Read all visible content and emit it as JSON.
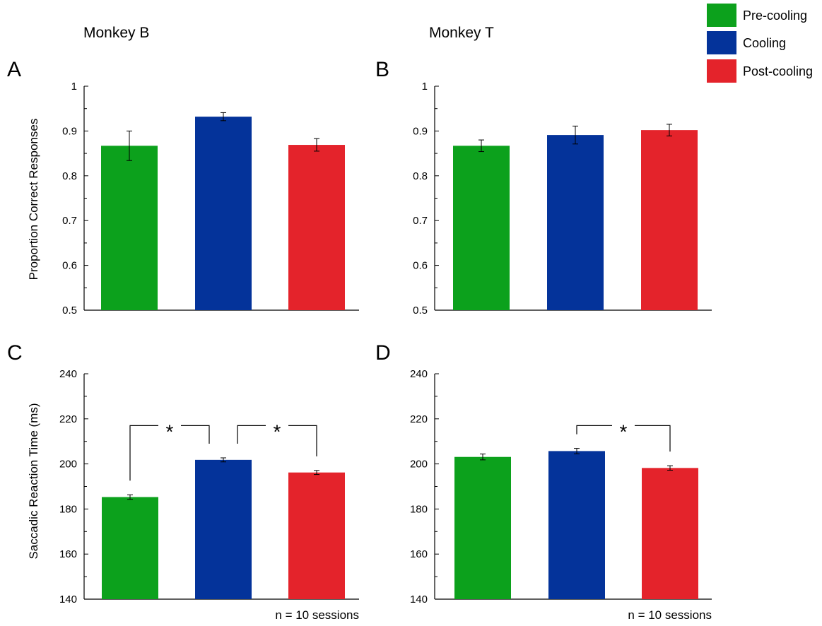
{
  "figure": {
    "monkey_labels": [
      "Monkey B",
      "Monkey T"
    ],
    "legend": [
      {
        "label": "Pre-cooling",
        "color": "#0ca11c"
      },
      {
        "label": "Cooling",
        "color": "#04339a"
      },
      {
        "label": "Post-cooling",
        "color": "#e4232b"
      }
    ],
    "note": "n = 10 sessions"
  },
  "chart_data": [
    {
      "type": "bar",
      "panel": "A",
      "ylabel": "Proportion Correct Responses",
      "ylim": [
        0.5,
        1
      ],
      "yticks": [
        0.5,
        0.6,
        0.7,
        0.8,
        0.9,
        1
      ],
      "ytick_labels": [
        "0.5",
        "0.6",
        "0.7",
        "0.8",
        "0.9",
        "1"
      ],
      "categories": [
        "Pre-cooling",
        "Cooling",
        "Post-cooling"
      ],
      "values": [
        0.867,
        0.932,
        0.869
      ],
      "errors": [
        0.033,
        0.009,
        0.014
      ],
      "significance": []
    },
    {
      "type": "bar",
      "panel": "B",
      "ylabel": "",
      "ylim": [
        0.5,
        1
      ],
      "yticks": [
        0.5,
        0.6,
        0.7,
        0.8,
        0.9,
        1
      ],
      "ytick_labels": [
        "0.5",
        "0.6",
        "0.7",
        "0.8",
        "0.9",
        "1"
      ],
      "categories": [
        "Pre-cooling",
        "Cooling",
        "Post-cooling"
      ],
      "values": [
        0.867,
        0.891,
        0.902
      ],
      "errors": [
        0.013,
        0.02,
        0.013
      ],
      "significance": []
    },
    {
      "type": "bar",
      "panel": "C",
      "ylabel": "Saccadic Reaction Time (ms)",
      "ylim": [
        140,
        240
      ],
      "yticks": [
        140,
        160,
        180,
        200,
        220,
        240
      ],
      "ytick_labels": [
        "140",
        "160",
        "180",
        "200",
        "220",
        "240"
      ],
      "categories": [
        "Pre-cooling",
        "Cooling",
        "Post-cooling"
      ],
      "values": [
        185.3,
        201.8,
        196.2
      ],
      "errors": [
        1.0,
        0.9,
        0.9
      ],
      "significance": [
        {
          "from": 0,
          "to": 1,
          "label": "*"
        },
        {
          "from": 1,
          "to": 2,
          "label": "*"
        }
      ]
    },
    {
      "type": "bar",
      "panel": "D",
      "ylabel": "",
      "ylim": [
        140,
        240
      ],
      "yticks": [
        140,
        160,
        180,
        200,
        220,
        240
      ],
      "ytick_labels": [
        "140",
        "160",
        "180",
        "200",
        "220",
        "240"
      ],
      "categories": [
        "Pre-cooling",
        "Cooling",
        "Post-cooling"
      ],
      "values": [
        203.1,
        205.7,
        198.2
      ],
      "errors": [
        1.3,
        1.2,
        1.0
      ],
      "significance": [
        {
          "from": 1,
          "to": 2,
          "label": "*"
        }
      ]
    }
  ]
}
